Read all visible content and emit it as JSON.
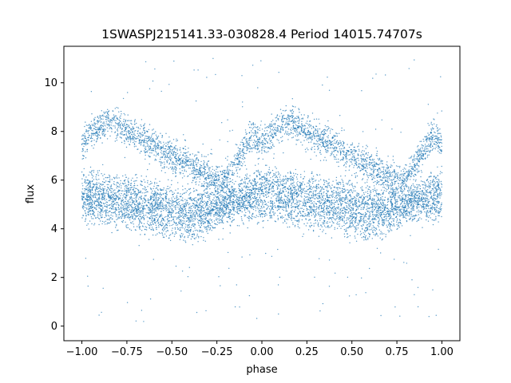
{
  "chart_data": {
    "type": "scatter",
    "title": "1SWASPJ215141.33-030828.4 Period 14015.74707s",
    "xlabel": "phase",
    "ylabel": "flux",
    "xlim": [
      -1.1,
      1.1
    ],
    "ylim": [
      -0.6,
      11.5
    ],
    "x_ticks": [
      -1.0,
      -0.75,
      -0.5,
      -0.25,
      0.0,
      0.25,
      0.5,
      0.75,
      1.0
    ],
    "x_tick_labels": [
      "−1.00",
      "−0.75",
      "−0.50",
      "−0.25",
      "0.00",
      "0.25",
      "0.50",
      "0.75",
      "1.00"
    ],
    "y_ticks": [
      0,
      2,
      4,
      6,
      8,
      10
    ],
    "y_tick_labels": [
      "0",
      "2",
      "4",
      "6",
      "8",
      "10"
    ],
    "grid": false,
    "legend": "none",
    "marker_color": "#1f77b4",
    "series": [
      {
        "x": [
          -1.0,
          -0.95,
          -0.9,
          -0.85,
          -0.8,
          -0.75,
          -0.7,
          -0.65,
          -0.6,
          -0.55,
          -0.5,
          -0.45,
          -0.4,
          -0.35,
          -0.3,
          -0.25,
          -0.2,
          -0.15,
          -0.1,
          -0.05,
          0.0,
          0.05,
          0.1,
          0.15,
          0.2,
          0.25,
          0.3,
          0.35,
          0.4,
          0.45,
          0.5,
          0.55,
          0.6,
          0.65,
          0.7,
          0.75,
          0.8,
          0.85,
          0.9,
          0.95,
          1.0
        ],
        "y": [
          7.5,
          7.9,
          8.2,
          8.4,
          8.3,
          8.0,
          7.8,
          7.6,
          7.4,
          7.2,
          7.0,
          6.8,
          6.6,
          6.4,
          6.2,
          6.0,
          6.1,
          6.6,
          7.3,
          7.8,
          7.5,
          7.9,
          8.2,
          8.4,
          8.3,
          8.0,
          7.8,
          7.6,
          7.4,
          7.2,
          7.0,
          6.8,
          6.6,
          6.4,
          6.2,
          6.0,
          6.1,
          6.6,
          7.3,
          7.8,
          7.5
        ]
      },
      {
        "x": [
          -1.0,
          -0.9,
          -0.8,
          -0.7,
          -0.6,
          -0.5,
          -0.4,
          -0.3,
          -0.2,
          -0.1,
          0.0,
          0.1,
          0.2,
          0.3,
          0.4,
          0.5,
          0.6,
          0.7,
          0.8,
          0.9,
          1.0
        ],
        "y": [
          5.7,
          5.6,
          5.5,
          5.4,
          5.3,
          5.1,
          5.0,
          5.0,
          5.2,
          5.6,
          5.9,
          5.8,
          5.6,
          5.5,
          5.4,
          5.3,
          5.1,
          5.0,
          5.1,
          5.5,
          5.8
        ]
      },
      {
        "x": [
          -1.0,
          -0.9,
          -0.8,
          -0.7,
          -0.6,
          -0.5,
          -0.4,
          -0.3,
          -0.2,
          -0.1,
          0.0,
          0.1,
          0.2,
          0.3,
          0.4,
          0.5,
          0.6,
          0.7,
          0.8,
          0.9,
          1.0
        ],
        "y": [
          5.0,
          4.9,
          4.8,
          4.6,
          4.5,
          4.3,
          4.2,
          4.4,
          4.9,
          5.0,
          5.0,
          4.9,
          4.8,
          4.7,
          4.6,
          4.4,
          4.2,
          4.4,
          4.9,
          5.0,
          5.0
        ]
      }
    ]
  }
}
